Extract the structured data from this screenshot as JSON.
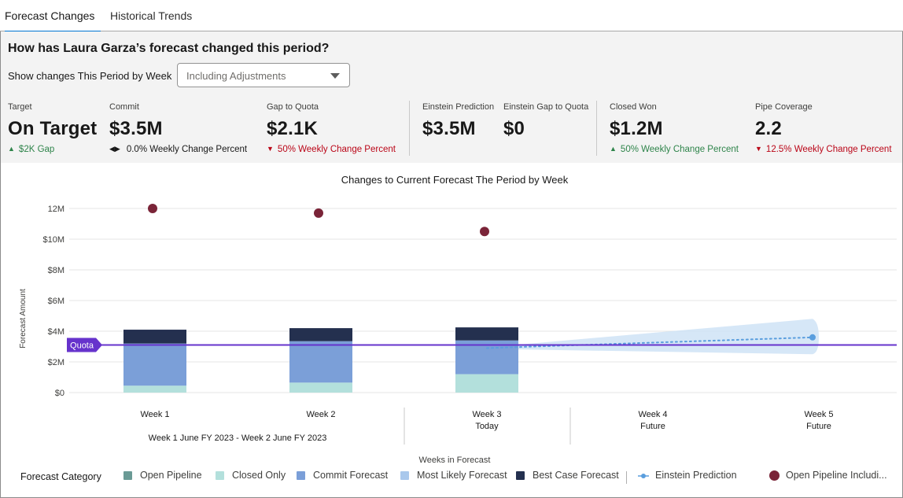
{
  "tabs": [
    {
      "label": "Forecast Changes",
      "active": true
    },
    {
      "label": "Historical Trends",
      "active": false
    }
  ],
  "header": {
    "title": "How has Laura Garza’s forecast changed this period?",
    "show_changes_label": "Show changes This Period by Week",
    "dropdown_value": "Including Adjustments"
  },
  "metrics": {
    "target": {
      "label": "Target",
      "value": "On Target",
      "change": "$2K Gap",
      "trend": "up"
    },
    "commit": {
      "label": "Commit",
      "value": "$3.5M",
      "change": "0.0% Weekly Change Percent",
      "trend": "neutral"
    },
    "gap_to_quota": {
      "label": "Gap to Quota",
      "value": "$2.1K",
      "change": "50% Weekly Change Percent",
      "trend": "down"
    },
    "einstein_prediction": {
      "label": "Einstein Prediction",
      "value": "$3.5M"
    },
    "einstein_gap": {
      "label": "Einstein Gap to Quota",
      "value": "$0"
    },
    "closed_won": {
      "label": "Closed Won",
      "value": "$1.2M",
      "change": "50% Weekly Change Percent",
      "trend": "up"
    },
    "pipe_coverage": {
      "label": "Pipe Coverage",
      "value": "2.2",
      "change": "12.5% Weekly Change Percent",
      "trend": "down"
    }
  },
  "colors": {
    "open_pipeline": "#6a9a95",
    "closed_only": "#b3e0dc",
    "commit_forecast": "#7b9fd8",
    "most_likely": "#a9c8ec",
    "best_case": "#24304f",
    "einstein": "#5a9ede",
    "open_pipeline_incl": "#7a2438",
    "quota": "#6633cc",
    "up": "#2e844a",
    "down": "#ba0517"
  },
  "chart_data": {
    "type": "bar",
    "title": "Changes to Current Forecast The Period by Week",
    "xlabel": "Weeks in Forecast",
    "ylabel": "Forecast Amount",
    "ylim": [
      0,
      12.5
    ],
    "y_ticks": [
      {
        "value": 0,
        "label": "$0"
      },
      {
        "value": 2,
        "label": "$2M"
      },
      {
        "value": 4,
        "label": "$4M"
      },
      {
        "value": 6,
        "label": "$6M"
      },
      {
        "value": 8,
        "label": "$8M"
      },
      {
        "value": 10,
        "label": "$10M"
      },
      {
        "value": 12,
        "label": "12M"
      }
    ],
    "categories": [
      "Week 1",
      "Week 2",
      "Week 3",
      "Week 4",
      "Week 5"
    ],
    "category_sublabels": [
      "",
      "",
      "Today",
      "Future",
      "Future"
    ],
    "group_label": "Week 1 June FY 2023 - Week 2 June FY 2023",
    "series": [
      {
        "name": "Closed Only",
        "values": [
          0.45,
          0.65,
          1.2,
          null,
          null
        ]
      },
      {
        "name": "Commit Forecast",
        "values": [
          2.75,
          2.7,
          2.2,
          null,
          null
        ]
      },
      {
        "name": "Best Case Forecast",
        "values": [
          0.9,
          0.85,
          0.85,
          null,
          null
        ]
      },
      {
        "name": "Open Pipeline Including",
        "values": [
          12.0,
          11.7,
          10.5,
          null,
          null
        ]
      }
    ],
    "einstein_prediction": {
      "x_start": 2.0,
      "x_end": 4.0,
      "start": 2.9,
      "end": 3.6,
      "band_start": 0.05,
      "band_end": 1.0
    },
    "quota": {
      "label": "Quota",
      "value": 3.1
    }
  },
  "legend": {
    "title": "Forecast Category",
    "items": [
      {
        "label": "Open Pipeline",
        "swatch": "square",
        "color_key": "open_pipeline"
      },
      {
        "label": "Closed Only",
        "swatch": "square",
        "color_key": "closed_only"
      },
      {
        "label": "Commit Forecast",
        "swatch": "square",
        "color_key": "commit_forecast"
      },
      {
        "label": "Most Likely Forecast",
        "swatch": "square",
        "color_key": "most_likely"
      },
      {
        "label": "Best Case Forecast",
        "swatch": "square",
        "color_key": "best_case"
      },
      {
        "label": "Einstein Prediction",
        "swatch": "line-dot",
        "color_key": "einstein"
      },
      {
        "label": "Open Pipeline Includi...",
        "swatch": "circle",
        "color_key": "open_pipeline_incl"
      }
    ]
  }
}
